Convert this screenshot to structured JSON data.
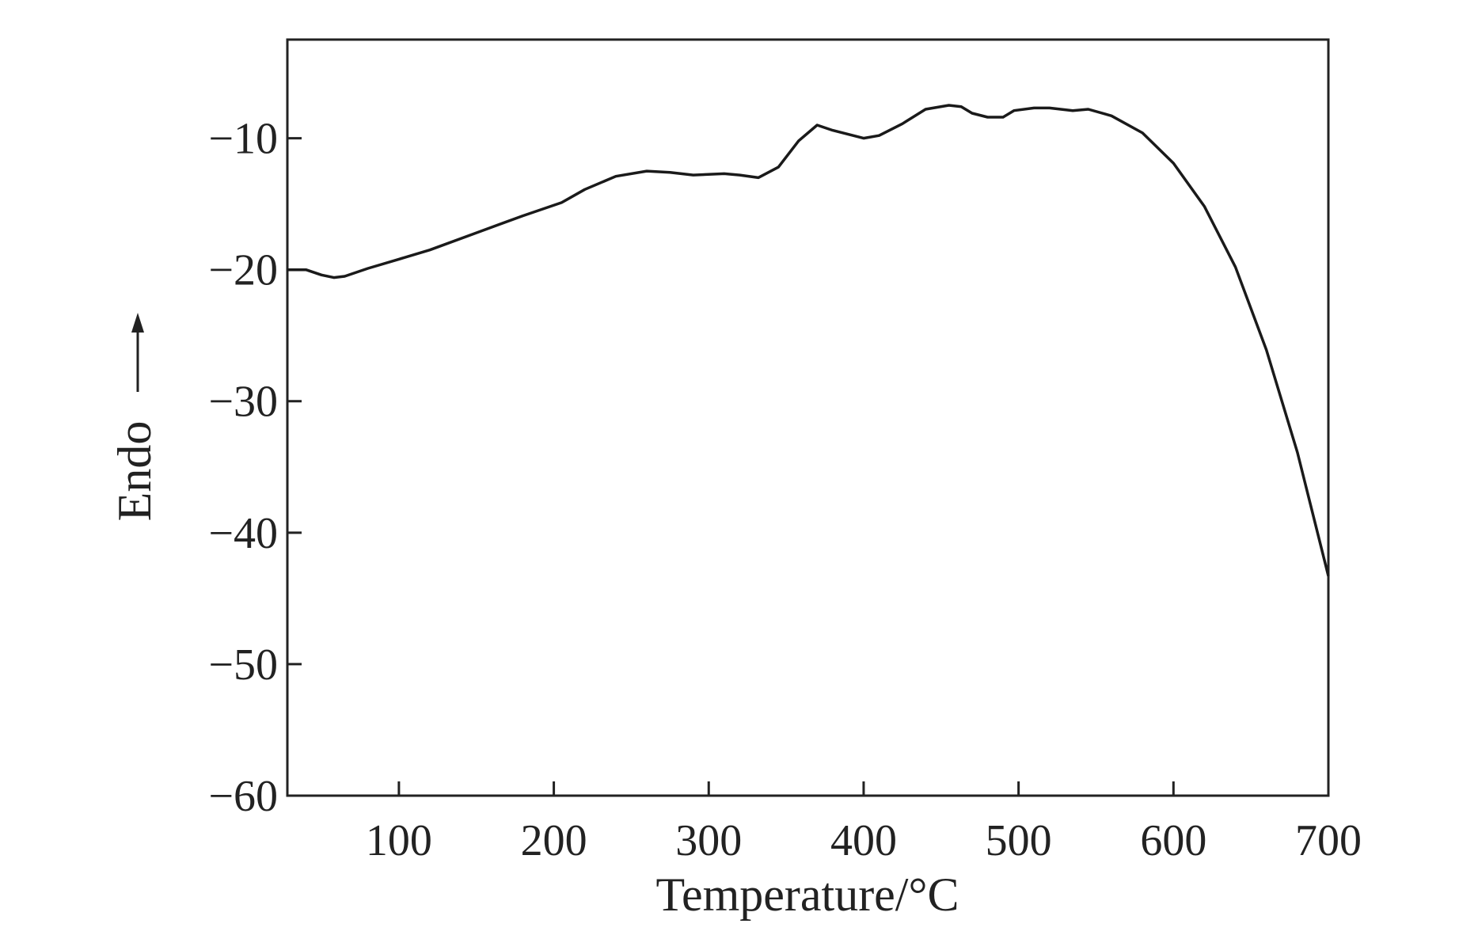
{
  "chart_data": {
    "type": "line",
    "x_label": "Temperature/°C",
    "y_label": "Endo",
    "x": [
      28,
      40,
      50,
      58,
      65,
      80,
      100,
      120,
      150,
      180,
      205,
      220,
      240,
      260,
      275,
      290,
      310,
      320,
      332,
      345,
      358,
      370,
      380,
      400,
      410,
      425,
      440,
      455,
      463,
      470,
      480,
      490,
      497,
      510,
      520,
      535,
      545,
      560,
      580,
      600,
      620,
      640,
      660,
      680,
      700
    ],
    "series": [
      {
        "color": "#1a1a1a",
        "values": [
          -20.0,
          -20.0,
          -20.4,
          -20.6,
          -20.5,
          -19.9,
          -19.2,
          -18.5,
          -17.2,
          -15.9,
          -14.9,
          -13.9,
          -12.9,
          -12.5,
          -12.6,
          -12.8,
          -12.7,
          -12.8,
          -13.0,
          -12.2,
          -10.2,
          -9.0,
          -9.4,
          -10.0,
          -9.8,
          -8.9,
          -7.8,
          -7.5,
          -7.6,
          -8.1,
          -8.4,
          -8.4,
          -7.9,
          -7.7,
          -7.7,
          -7.9,
          -7.8,
          -8.3,
          -9.6,
          -11.9,
          -15.2,
          -19.8,
          -26.1,
          -33.9,
          -43.3
        ]
      }
    ],
    "xlim": [
      28,
      700
    ],
    "ylim": [
      -60,
      -2.5
    ],
    "xticks": [
      100,
      200,
      300,
      400,
      500,
      600,
      700
    ],
    "yticks": [
      {
        "value": -60,
        "label": "−60"
      },
      {
        "value": -50,
        "label": "−50"
      },
      {
        "value": -40,
        "label": "−40"
      },
      {
        "value": -30,
        "label": "−30"
      },
      {
        "value": -20,
        "label": "−20"
      },
      {
        "value": -10,
        "label": "−10"
      }
    ]
  }
}
